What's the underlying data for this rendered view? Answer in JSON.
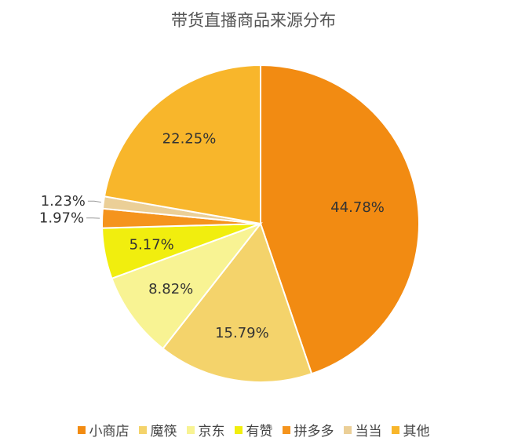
{
  "chart_data": {
    "type": "pie",
    "title": "带货直播商品来源分布",
    "categories": [
      "小商店",
      "魔筷",
      "京东",
      "有赞",
      "拼多多",
      "当当",
      "其他"
    ],
    "values": [
      44.78,
      15.79,
      8.82,
      5.17,
      1.97,
      1.23,
      22.25
    ],
    "data_labels": [
      "44.78%",
      "15.79%",
      "8.82%",
      "5.17%",
      "1.97%",
      "1.23%",
      "22.25%"
    ],
    "colors": [
      "#F28B12",
      "#F4D36B",
      "#F8F393",
      "#F1EE0E",
      "#F5941D",
      "#EBCF97",
      "#F8B62B"
    ],
    "legend_position": "bottom",
    "start_angle": "12 o'clock, clockwise"
  }
}
